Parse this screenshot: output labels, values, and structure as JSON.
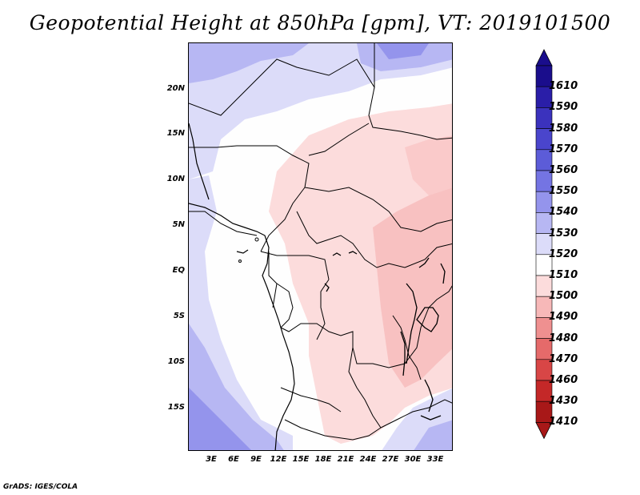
{
  "title": "Geopotential Height at 850hPa [gpm], VT: 2019101500",
  "footer": "GrADS: IGES/COLA",
  "axes": {
    "lat_labels": [
      "20N",
      "15N",
      "10N",
      "5N",
      "EQ",
      "5S",
      "10S",
      "15S"
    ],
    "lon_labels": [
      "3E",
      "6E",
      "9E",
      "12E",
      "15E",
      "18E",
      "21E",
      "24E",
      "27E",
      "30E",
      "33E"
    ]
  },
  "colorbar": {
    "levels": [
      "1610",
      "1590",
      "1580",
      "1570",
      "1560",
      "1550",
      "1540",
      "1530",
      "1520",
      "1510",
      "1500",
      "1490",
      "1480",
      "1470",
      "1460",
      "1430",
      "1410"
    ],
    "colors": [
      "#1a0d8c",
      "#2a1ea8",
      "#3b32bd",
      "#4a45cc",
      "#5c5cd8",
      "#7474e3",
      "#9494ec",
      "#b7b7f3",
      "#dcdcf9",
      "#ffffff",
      "#fcdcdc",
      "#f7b8b8",
      "#ef9090",
      "#e56a6a",
      "#d84646",
      "#c42828",
      "#a81818"
    ]
  }
}
